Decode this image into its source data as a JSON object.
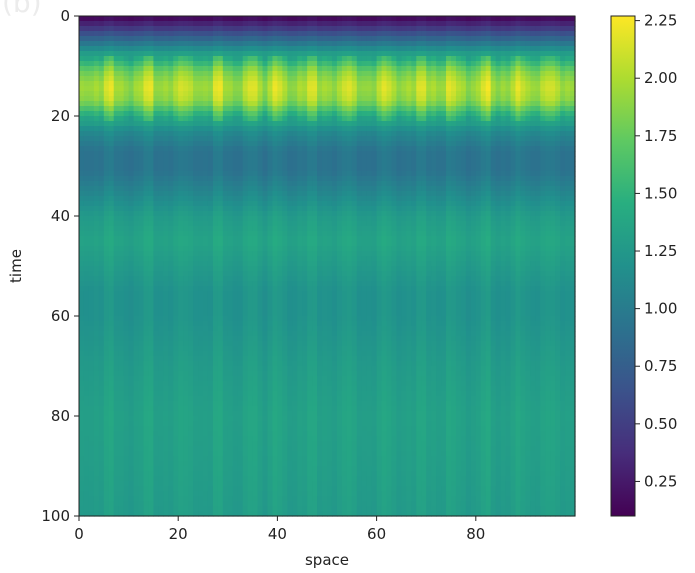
{
  "corner_text": "(b)",
  "chart_data": {
    "type": "heatmap",
    "title": "",
    "xlabel": "space",
    "ylabel": "time",
    "xlim": [
      0,
      100
    ],
    "ylim": [
      100,
      0
    ],
    "xticks": [
      "0",
      "20",
      "40",
      "60",
      "80"
    ],
    "yticks": [
      "0",
      "20",
      "40",
      "60",
      "80",
      "100"
    ],
    "colormap": "viridis",
    "colorbar": {
      "range": [
        0.1,
        2.27
      ],
      "ticks": [
        "0.25",
        "0.50",
        "0.75",
        "1.00",
        "1.25",
        "1.50",
        "1.75",
        "2.00",
        "2.25"
      ]
    },
    "time_profile": [
      {
        "time": 0,
        "value": 0.1
      },
      {
        "time": 2,
        "value": 0.4
      },
      {
        "time": 5,
        "value": 0.9
      },
      {
        "time": 8,
        "value": 1.4
      },
      {
        "time": 11,
        "value": 1.85
      },
      {
        "time": 14,
        "value": 2.05
      },
      {
        "time": 17,
        "value": 1.95
      },
      {
        "time": 20,
        "value": 1.5
      },
      {
        "time": 23,
        "value": 1.15
      },
      {
        "time": 27,
        "value": 0.95
      },
      {
        "time": 31,
        "value": 0.95
      },
      {
        "time": 35,
        "value": 1.1
      },
      {
        "time": 40,
        "value": 1.3
      },
      {
        "time": 45,
        "value": 1.38
      },
      {
        "time": 50,
        "value": 1.3
      },
      {
        "time": 55,
        "value": 1.22
      },
      {
        "time": 60,
        "value": 1.22
      },
      {
        "time": 70,
        "value": 1.3
      },
      {
        "time": 80,
        "value": 1.35
      },
      {
        "time": 90,
        "value": 1.33
      },
      {
        "time": 100,
        "value": 1.3
      }
    ],
    "space_modulation_peaks": [
      6,
      14,
      21,
      28,
      35,
      40,
      47,
      54,
      62,
      69,
      75,
      82,
      89,
      95
    ]
  }
}
